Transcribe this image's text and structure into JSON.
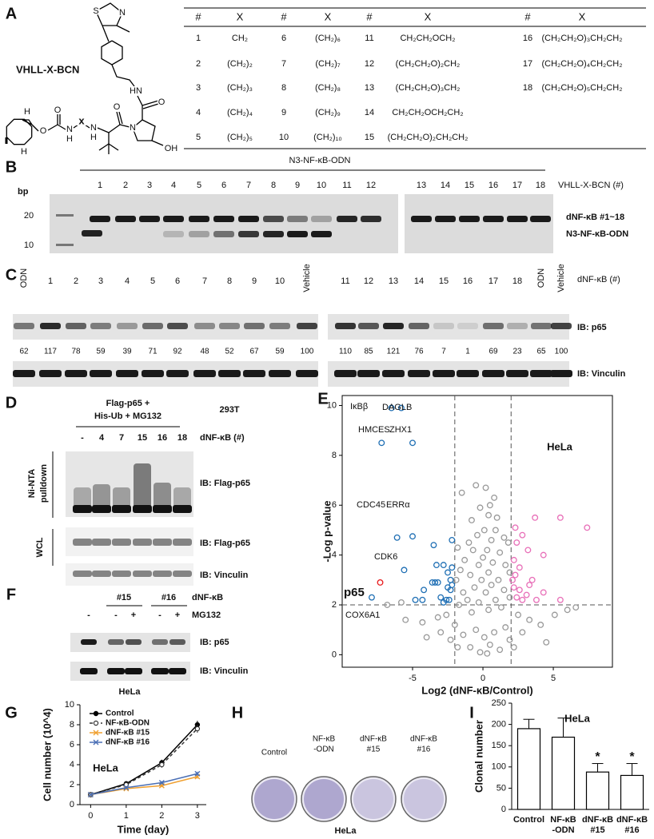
{
  "panels": {
    "A": {
      "label": "A",
      "compound": "VHLL-X-BCN",
      "atoms": [
        "S",
        "N",
        "HN",
        "O",
        "N",
        "OH",
        "O",
        "N",
        "H",
        "x",
        "N",
        "H",
        "O",
        "O",
        "H",
        "H"
      ],
      "table": {
        "headers": [
          "#",
          "X",
          "#",
          "X",
          "#",
          "X",
          "#",
          "X"
        ],
        "rows": [
          [
            "1",
            "CH₂",
            "6",
            "(CH₂)₆",
            "11",
            "CH₂CH₂OCH₂",
            "16",
            "(CH₂CH₂O)₃CH₂CH₂"
          ],
          [
            "2",
            "(CH₂)₂",
            "7",
            "(CH₂)₇",
            "12",
            "(CH₂CH₂O)₂CH₂",
            "17",
            "(CH₂CH₂O)₄CH₂CH₂"
          ],
          [
            "3",
            "(CH₂)₃",
            "8",
            "(CH₂)₈",
            "13",
            "(CH₂CH₂O)₃CH₂",
            "18",
            "(CH₂CH₂O)₅CH₂CH₂"
          ],
          [
            "4",
            "(CH₂)₄",
            "9",
            "(CH₂)₉",
            "14",
            "CH₂CH₂OCH₂CH₂"
          ],
          [
            "5",
            "(CH₂)₅",
            "10",
            "(CH₂)₁₀",
            "15",
            "(CH₂CH₂O)₂CH₂CH₂"
          ]
        ]
      }
    },
    "B": {
      "label": "B",
      "construct": "N3-NF-κB-ODN",
      "size_unit": "bp",
      "size_markers": [
        20,
        10
      ],
      "lanes": [
        "1",
        "2",
        "3",
        "4",
        "5",
        "6",
        "7",
        "8",
        "9",
        "10",
        "11",
        "12",
        "13",
        "14",
        "15",
        "16",
        "17",
        "18"
      ],
      "lane_title": "VHLL-X-BCN (#)",
      "band_labels": [
        "dNF-κB #1~18",
        "N3-NF-κB-ODN"
      ]
    },
    "C": {
      "label": "C",
      "lane_title": "dNF-κB (#)",
      "highlight_color": "#e8191b",
      "blots": [
        {
          "lanes": [
            "ODN",
            "1",
            "2",
            "3",
            "4",
            "5",
            "6",
            "7",
            "8",
            "9",
            "10",
            "Vehicle"
          ],
          "red": [
            false,
            false,
            false,
            false,
            true,
            false,
            false,
            true,
            false,
            false,
            false,
            false
          ],
          "quant": [
            62,
            117,
            78,
            59,
            39,
            71,
            92,
            48,
            52,
            67,
            59,
            100
          ]
        },
        {
          "lanes": [
            "11",
            "12",
            "13",
            "14",
            "15",
            "16",
            "17",
            "18",
            "ODN",
            "Vehicle"
          ],
          "red": [
            false,
            false,
            false,
            false,
            true,
            true,
            false,
            true,
            false,
            false
          ],
          "quant": [
            110,
            85,
            121,
            76,
            7,
            1,
            69,
            23,
            65,
            100
          ]
        }
      ],
      "probes": [
        "IB: p65",
        "IB: Vinculin"
      ]
    },
    "D": {
      "label": "D",
      "treatment": [
        "Flag-p65 +",
        "His-Ub + MG132"
      ],
      "cell_line": "293T",
      "lanes": [
        "-",
        "4",
        "7",
        "15",
        "16",
        "18"
      ],
      "lane_title": "dNF-κB (#)",
      "fractions": [
        "Ni-NTA",
        "pulldown",
        "WCL"
      ],
      "probes": [
        "IB: Flag-p65",
        "IB: Flag-p65",
        "IB: Vinculin"
      ]
    },
    "F": {
      "label": "F",
      "groups": [
        "#15",
        "#16"
      ],
      "group_title": "dNF-κB",
      "mg132": [
        "-",
        "-",
        "+",
        "-",
        "+"
      ],
      "mg132_title": "MG132",
      "probes": [
        "IB: p65",
        "IB: Vinculin"
      ],
      "cell_line": "HeLa"
    },
    "H": {
      "label": "H",
      "wells": [
        [
          "Control"
        ],
        [
          "NF-κB",
          "-ODN"
        ],
        [
          "dNF-κB",
          "#15"
        ],
        [
          "dNF-κB",
          "#16"
        ]
      ],
      "cell_line": "HeLa"
    }
  },
  "chart_data": [
    {
      "type": "scatter",
      "label": "E",
      "title": "HeLa",
      "x_label": "Log2 (dNF-κB/Control)",
      "y_label": "-Log p-value",
      "xlim": [
        -10,
        9.2
      ],
      "ylim": [
        -0.5,
        10.4
      ],
      "xticks": [
        -5,
        0,
        5
      ],
      "yticks": [
        0,
        2,
        4,
        6,
        8,
        10
      ],
      "thresholds_x": [
        -2,
        2
      ],
      "threshold_y": 2,
      "series": [
        {
          "color": "#999999",
          "x": [
            -1.5,
            -0.5,
            0.2,
            0.8,
            0.5,
            -0.2,
            0.4,
            1.0,
            -0.8,
            0.9,
            0.1,
            -0.4,
            0.6,
            1.5,
            1.8,
            -1.0,
            -1.8,
            -0.7,
            0.3,
            1.2,
            0.0,
            -1.3,
            -0.3,
            0.7,
            1.6,
            -1.6,
            1.9,
            0.4,
            -0.9,
            -0.1,
            1.1,
            -1.9,
            0.6,
            -0.6,
            1.5,
            -1.4,
            0.2,
            1.9,
            -1.1,
            0.9,
            -0.3,
            -1.7,
            1.3,
            0.4,
            -0.8,
            2.5,
            -2.6,
            3.3,
            -3.2,
            4.1,
            -4.3,
            5.1,
            -5.5,
            -6.8,
            6.0,
            -2.0,
            1.6,
            -0.5,
            0.8,
            -1.4,
            0.1,
            1.9,
            -2.3,
            2.8,
            -3.0,
            0.5,
            -0.9,
            1.2,
            -0.2,
            0.3,
            -1.8,
            2.2,
            -4.0,
            4.5,
            -5.8,
            6.6
          ],
          "values": [
            6.5,
            6.8,
            6.7,
            6.3,
            6.0,
            5.9,
            5.6,
            5.5,
            5.4,
            5.0,
            5.0,
            4.8,
            4.6,
            4.7,
            4.5,
            4.5,
            4.3,
            4.2,
            4.2,
            4.1,
            3.9,
            3.8,
            3.6,
            3.7,
            3.6,
            3.4,
            3.3,
            3.3,
            3.2,
            3.0,
            3.0,
            3.0,
            2.8,
            2.7,
            2.6,
            2.5,
            2.5,
            2.3,
            2.2,
            2.2,
            2.1,
            2.0,
            1.9,
            1.8,
            1.7,
            1.6,
            1.6,
            1.4,
            1.5,
            1.2,
            1.3,
            1.6,
            1.4,
            2.0,
            1.8,
            1.2,
            1.1,
            1.0,
            0.9,
            0.8,
            0.7,
            0.6,
            0.6,
            0.9,
            0.9,
            0.4,
            0.3,
            0.2,
            0.1,
            0.05,
            0.3,
            0.3,
            0.7,
            0.5,
            2.1,
            1.9
          ]
        },
        {
          "color": "#1f6fb4",
          "x": [
            -6.5,
            -5.8,
            -7.2,
            -5,
            -6.1,
            -5,
            -5.6,
            -7.9,
            -3.5,
            -2.2,
            -2.8,
            -3.3,
            -2.5,
            -2.2,
            -3.6,
            -3.4,
            -3.2,
            -4.2,
            -2.5,
            -2.3,
            -2.6,
            -2.4,
            -3,
            -4.8,
            -4.3,
            -2.8,
            -2.2,
            -2.3
          ],
          "values": [
            9.9,
            9.9,
            8.5,
            8.5,
            4.7,
            4.75,
            3.4,
            2.3,
            4.4,
            4.6,
            3.6,
            3.6,
            3.3,
            3.5,
            2.9,
            2.9,
            2.9,
            2.6,
            2.7,
            2.6,
            2.2,
            2.2,
            2.3,
            2.2,
            2.2,
            2.1,
            2.8,
            3.0
          ]
        },
        {
          "color": "#e86fb8",
          "x": [
            5.5,
            7.4,
            3.7,
            2.3,
            2.8,
            3.2,
            2.4,
            4.3,
            2.2,
            2.6,
            2.3,
            3.5,
            2.1,
            2.6,
            3.1,
            4.3,
            2.4,
            3.8,
            5.5,
            2.8,
            2.2,
            3.3
          ],
          "values": [
            5.5,
            5.1,
            5.5,
            5.1,
            4.8,
            4.2,
            4.5,
            4.0,
            3.8,
            3.5,
            3.2,
            3.0,
            3.0,
            2.6,
            2.4,
            2.5,
            2.3,
            2.2,
            2.2,
            2.2,
            2.7,
            2.8
          ]
        },
        {
          "color": "#e8191b",
          "x": [
            -7.3
          ],
          "values": [
            2.9
          ]
        }
      ],
      "annotations": [
        "IκBβ",
        "DAGLB",
        "HMCES",
        "ZHX1",
        "CDC45",
        "ERRα",
        "CDK6",
        "p65",
        "COX6A1"
      ]
    },
    {
      "type": "line",
      "label": "G",
      "title": "HeLa",
      "x_label": "Time (day)",
      "y_label": "Cell number (10^4)",
      "x": [
        0,
        1,
        2,
        3
      ],
      "xlim": [
        -0.3,
        3.25
      ],
      "ylim": [
        0,
        10
      ],
      "xticks": [
        0,
        1,
        2,
        3
      ],
      "yticks": [
        0,
        2,
        4,
        6,
        8,
        10
      ],
      "series": [
        {
          "name": "Control",
          "color": "#000000",
          "dash": false,
          "marker": "filled-circle",
          "values": [
            1,
            2.1,
            4.2,
            8.0
          ],
          "errors": [
            0.05,
            0.15,
            0.3,
            0.4
          ]
        },
        {
          "name": "NF-κB-ODN",
          "color": "#333333",
          "dash": true,
          "marker": "open-circle",
          "values": [
            1,
            2.0,
            4.0,
            7.6
          ],
          "errors": [
            0.05,
            0.15,
            0.3,
            0.4
          ]
        },
        {
          "name": "dNF-κB #15",
          "color": "#f0a030",
          "dash": false,
          "marker": "x",
          "values": [
            1,
            1.6,
            1.9,
            2.8
          ],
          "errors": [
            0.05,
            0.1,
            0.15,
            0.2
          ]
        },
        {
          "name": "dNF-κB #16",
          "color": "#4a6fb5",
          "dash": false,
          "marker": "x",
          "values": [
            1,
            1.7,
            2.2,
            3.1
          ],
          "errors": [
            0.05,
            0.1,
            0.15,
            0.2
          ]
        }
      ]
    },
    {
      "type": "bar",
      "label": "I",
      "title": "HeLa",
      "y_label": "Clonal number",
      "categories": [
        [
          "Control"
        ],
        [
          "NF-κB",
          "-ODN"
        ],
        [
          "dNF-κB",
          "#15"
        ],
        [
          "dNF-κB",
          "#16"
        ]
      ],
      "values": [
        190,
        170,
        88,
        80
      ],
      "errors": [
        22,
        45,
        20,
        28
      ],
      "significance": [
        null,
        null,
        "*",
        "*"
      ],
      "color": "#ffffff",
      "ylim": [
        0,
        250
      ],
      "yticks": [
        0,
        50,
        100,
        150,
        200,
        250
      ]
    }
  ]
}
